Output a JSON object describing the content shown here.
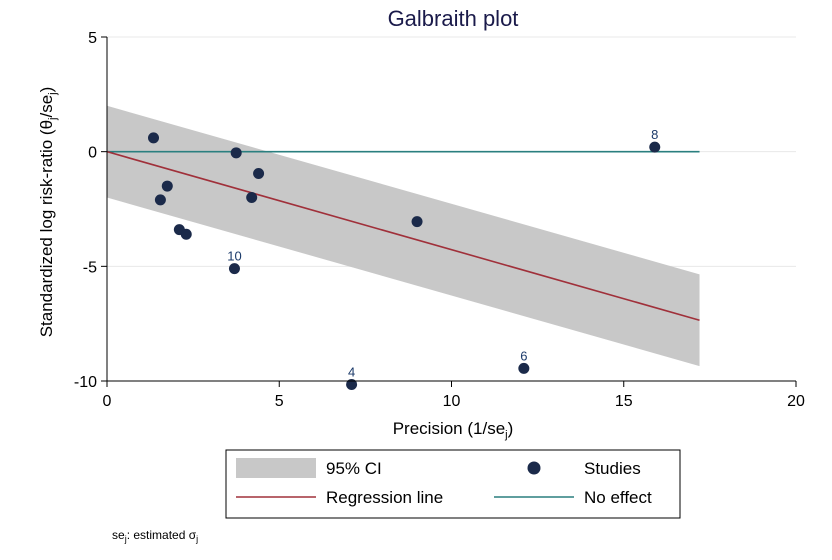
{
  "chart_data": {
    "type": "scatter",
    "title": "Galbraith plot",
    "xlabel": "Precision (1/se",
    "xlabel_sub": "j",
    "xlabel_close": ")",
    "ylabel": "Standardized log risk-ratio (θ",
    "ylabel_sub": "j",
    "ylabel_mid": "/se",
    "ylabel_sub2": "j",
    "ylabel_close": ")",
    "xlim": [
      0,
      20
    ],
    "ylim": [
      -10,
      5
    ],
    "x_ticks": [
      "0",
      "5",
      "10",
      "15",
      "20"
    ],
    "x_tick_values": [
      0,
      5,
      10,
      15,
      20
    ],
    "y_ticks": [
      "5",
      "0",
      "-5",
      "-10"
    ],
    "y_tick_values": [
      5,
      0,
      -5,
      -10
    ],
    "grid": "horizontal",
    "studies": [
      {
        "x": 1.35,
        "y": 0.6,
        "label": ""
      },
      {
        "x": 1.55,
        "y": -2.1,
        "label": ""
      },
      {
        "x": 1.75,
        "y": -1.5,
        "label": ""
      },
      {
        "x": 2.1,
        "y": -3.4,
        "label": ""
      },
      {
        "x": 2.3,
        "y": -3.6,
        "label": ""
      },
      {
        "x": 3.7,
        "y": -5.1,
        "label": "10"
      },
      {
        "x": 3.75,
        "y": -0.05,
        "label": ""
      },
      {
        "x": 4.2,
        "y": -2.0,
        "label": ""
      },
      {
        "x": 4.4,
        "y": -0.95,
        "label": ""
      },
      {
        "x": 7.1,
        "y": -10.15,
        "label": "4"
      },
      {
        "x": 9.0,
        "y": -3.05,
        "label": ""
      },
      {
        "x": 12.1,
        "y": -9.45,
        "label": "6"
      },
      {
        "x": 15.9,
        "y": 0.2,
        "label": "8"
      }
    ],
    "regression_line": {
      "x": [
        0,
        17.2
      ],
      "y": [
        0,
        -7.35
      ]
    },
    "ci_band": {
      "x": [
        0,
        17.2
      ],
      "upper": [
        2.0,
        -5.35
      ],
      "lower": [
        -2.0,
        -9.35
      ]
    },
    "no_effect_line": {
      "x": [
        0,
        17.2
      ],
      "y": [
        0,
        0
      ]
    },
    "legend": {
      "placement": "bottom",
      "entries": [
        {
          "key": "ci",
          "label": "95% CI"
        },
        {
          "key": "studies",
          "label": "Studies"
        },
        {
          "key": "regression",
          "label": "Regression line"
        },
        {
          "key": "noeffect",
          "label": "No effect"
        }
      ]
    },
    "colors": {
      "band": "#c8c8c8",
      "regression": "#a0303a",
      "no_effect": "#2a7f7f",
      "points": "#1b2a4a",
      "point_labels": "#1b3a6a"
    },
    "footnote": {
      "pre": "se",
      "sub": "j",
      "mid": ": estimated σ",
      "sub2": "j"
    }
  }
}
